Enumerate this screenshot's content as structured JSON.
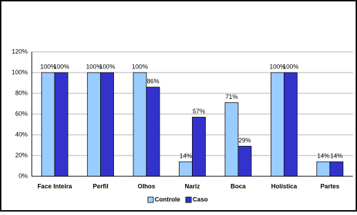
{
  "chart_data": {
    "type": "bar",
    "categories": [
      "Face Inteira",
      "Perfil",
      "Olhos",
      "Nariz",
      "Boca",
      "Holística",
      "Partes"
    ],
    "series": [
      {
        "name": "Controle",
        "color": "#99ccff",
        "values": [
          100,
          100,
          100,
          14,
          71,
          100,
          14
        ],
        "value_labels": [
          "100%",
          "100%",
          "100%",
          "14%",
          "71%",
          "100%",
          "14%"
        ]
      },
      {
        "name": "Caso",
        "color": "#3333cc",
        "values": [
          100,
          100,
          86,
          57,
          29,
          100,
          14
        ],
        "value_labels": [
          "100%",
          "100%",
          "86%",
          "57%",
          "29%",
          "100%",
          "14%"
        ]
      }
    ],
    "ylim": [
      0,
      120
    ],
    "yticks": [
      {
        "value": 0,
        "label": "0%"
      },
      {
        "value": 20,
        "label": "20%"
      },
      {
        "value": 40,
        "label": "40%"
      },
      {
        "value": 60,
        "label": "60%"
      },
      {
        "value": 80,
        "label": "80%"
      },
      {
        "value": 100,
        "label": "100%"
      },
      {
        "value": 120,
        "label": "120%"
      }
    ],
    "grid": true,
    "legend": "bottom"
  }
}
